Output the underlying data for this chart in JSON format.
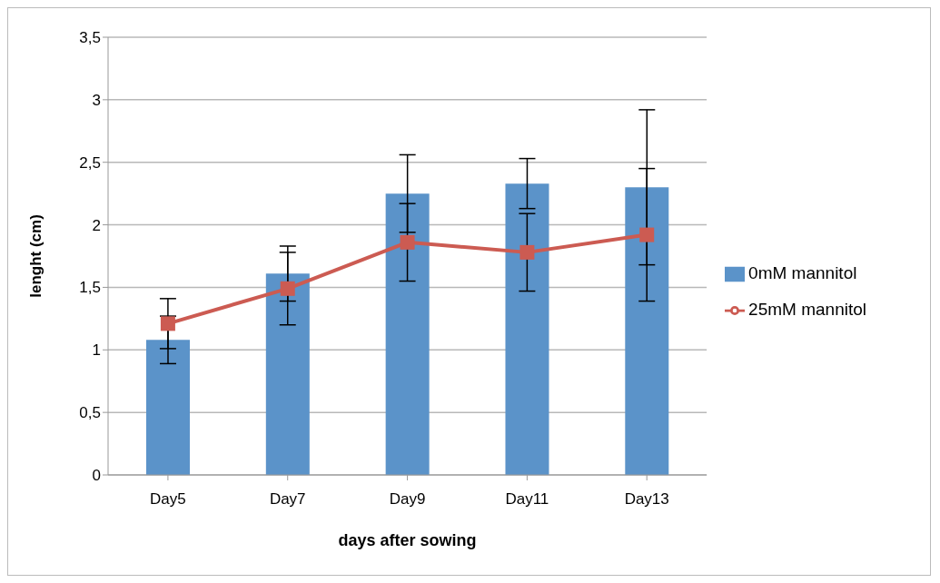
{
  "chart_data": {
    "type": "bar",
    "xlabel": "days after sowing",
    "ylabel": "lenght (cm)",
    "categories": [
      "Day5",
      "Day7",
      "Day9",
      "Day11",
      "Day13"
    ],
    "series": [
      {
        "name": "0mM  mannitol",
        "color": "#5b93c9",
        "values": [
          1.08,
          1.61,
          2.25,
          2.33,
          2.3
        ],
        "errors": [
          0.19,
          0.22,
          0.31,
          0.2,
          0.62
        ]
      },
      {
        "name": "25mM  mannitol",
        "type": "line",
        "color": "#cc5b52",
        "marker": "square",
        "values": [
          1.21,
          1.49,
          1.86,
          1.78,
          1.92
        ],
        "errors": [
          0.2,
          0.29,
          0.31,
          0.31,
          0.53
        ]
      }
    ],
    "ylim": [
      0,
      3.5
    ],
    "yticks": [
      0,
      {
        "value": 0.5,
        "label": "0,5"
      },
      1,
      {
        "value": 1.5,
        "label": "1,5"
      },
      2,
      {
        "value": 2.5,
        "label": "2,5"
      },
      3,
      {
        "value": 3.5,
        "label": "3,5"
      }
    ],
    "grid": "y",
    "legend": "right"
  }
}
